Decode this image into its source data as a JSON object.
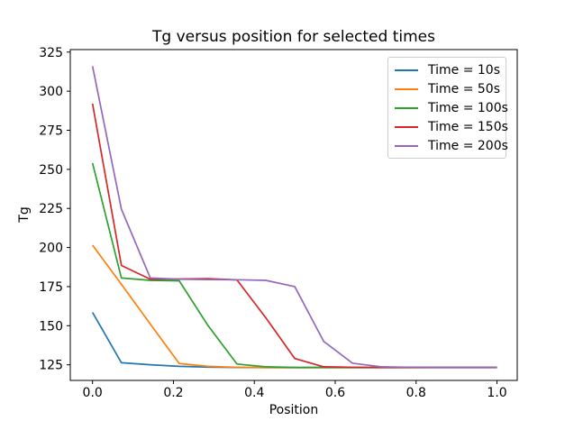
{
  "figure": {
    "background": "#ffffff",
    "axis_color": "#000000"
  },
  "chart_data": {
    "type": "line",
    "title": "Tg versus position for selected times",
    "xlabel": "Position",
    "ylabel": "Tg",
    "xlim": [
      -0.055,
      1.05
    ],
    "ylim": [
      115.0,
      326.6
    ],
    "xticks": [
      0.0,
      0.2,
      0.4,
      0.6,
      0.8,
      1.0
    ],
    "xtick_labels": [
      "0.0",
      "0.2",
      "0.4",
      "0.6",
      "0.8",
      "1.0"
    ],
    "yticks": [
      125,
      150,
      175,
      200,
      225,
      250,
      275,
      300,
      325
    ],
    "ytick_labels": [
      "125",
      "150",
      "175",
      "200",
      "225",
      "250",
      "275",
      "300",
      "325"
    ],
    "grid": false,
    "legend_position": "upper right",
    "x": [
      0.0,
      0.0714,
      0.1429,
      0.2143,
      0.2857,
      0.3571,
      0.4286,
      0.5,
      0.5714,
      0.6429,
      0.7143,
      0.7857,
      0.8571,
      0.9286,
      1.0
    ],
    "series": [
      {
        "name": "Time = 10s",
        "color": "#1f77b4",
        "values": [
          158.5,
          126.3,
          125.0,
          124.0,
          123.5,
          123.3,
          123.2,
          123.2,
          123.2,
          123.2,
          123.2,
          123.2,
          123.2,
          123.2,
          123.2
        ]
      },
      {
        "name": "Time = 50s",
        "color": "#ff7f0e",
        "values": [
          201.5,
          176.5,
          151.0,
          125.8,
          124.0,
          123.4,
          123.2,
          123.2,
          123.2,
          123.2,
          123.2,
          123.2,
          123.2,
          123.2,
          123.2
        ]
      },
      {
        "name": "Time = 100s",
        "color": "#2ca02c",
        "values": [
          254.0,
          180.5,
          179.0,
          178.7,
          150.0,
          125.5,
          123.7,
          123.3,
          123.3,
          123.3,
          123.3,
          123.3,
          123.3,
          123.3,
          123.3
        ]
      },
      {
        "name": "Time = 150s",
        "color": "#d62728",
        "values": [
          292.0,
          188.5,
          179.7,
          179.9,
          180.1,
          179.3,
          155.0,
          129.0,
          123.7,
          123.4,
          123.3,
          123.3,
          123.3,
          123.3,
          123.3
        ]
      },
      {
        "name": "Time = 200s",
        "color": "#9467bd",
        "values": [
          316.0,
          224.5,
          180.5,
          179.7,
          179.5,
          179.4,
          179.0,
          175.0,
          140.0,
          126.0,
          123.7,
          123.4,
          123.3,
          123.3,
          123.3
        ]
      }
    ]
  }
}
